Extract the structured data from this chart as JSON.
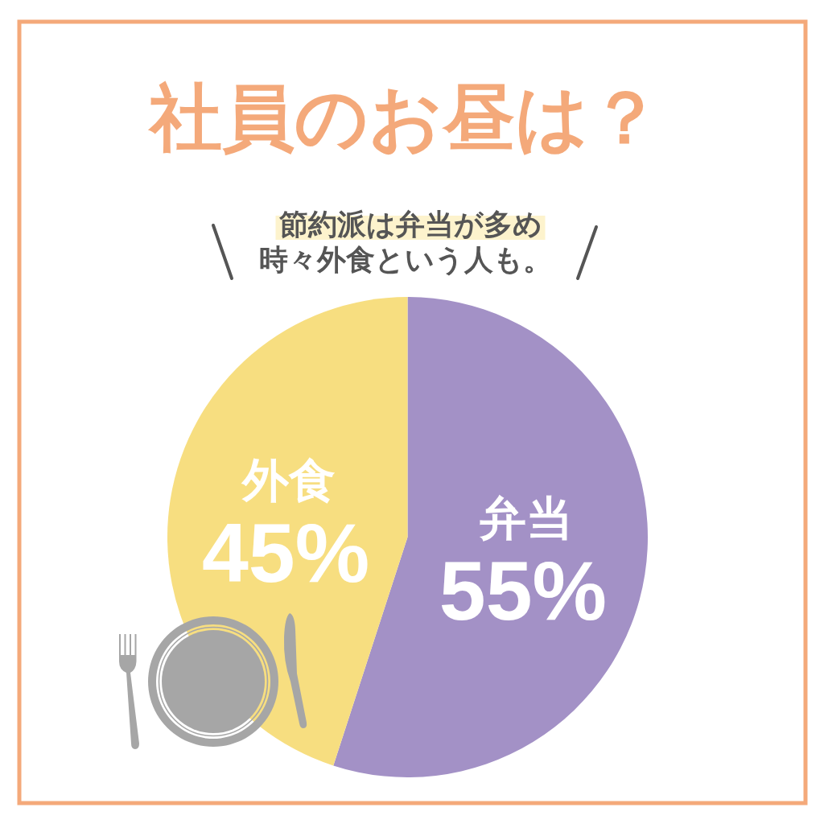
{
  "chart_data": {
    "type": "pie",
    "title": "社員のお昼は？",
    "subtitle": "節約派は弁当が多め",
    "annotations": [
      "時々外食という人も。"
    ],
    "categories": [
      "弁当",
      "外食"
    ],
    "values": [
      55,
      45
    ],
    "colors": [
      "#a391c6",
      "#f7de80"
    ],
    "value_labels": [
      "55%",
      "45%"
    ]
  }
}
